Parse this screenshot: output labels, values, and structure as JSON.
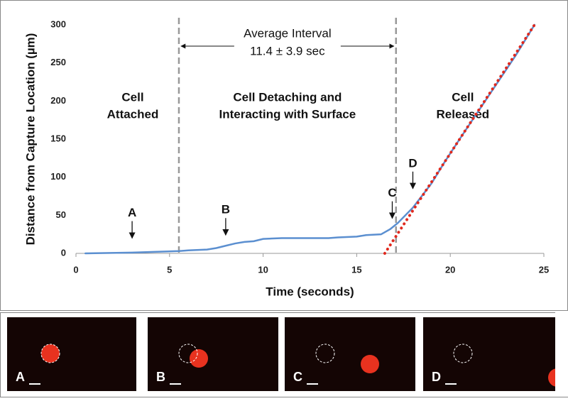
{
  "chart_data": {
    "type": "line",
    "x_label": "Time (seconds)",
    "y_label": "Distance from Capture Location (µm)",
    "xlim": [
      0,
      25
    ],
    "xticks": [
      0,
      5,
      10,
      15,
      20,
      25
    ],
    "ylim": [
      0,
      300
    ],
    "yticks": [
      0,
      50,
      100,
      150,
      200,
      250,
      300
    ],
    "series": [
      {
        "color": "#5b8fd0",
        "style": "solid",
        "x": [
          0.5,
          3,
          5.5,
          6,
          7,
          7.5,
          8,
          8.5,
          9,
          9.5,
          10,
          11,
          13.5,
          14,
          15,
          15.5,
          16.3,
          16.8,
          17.2,
          18,
          19,
          19.7,
          20.5,
          22,
          23.5,
          24.5
        ],
        "values": [
          0,
          1,
          3,
          4,
          5,
          7,
          10,
          13,
          15,
          16,
          19,
          20,
          20,
          21,
          22,
          24,
          25,
          32,
          40,
          60,
          92,
          120,
          150,
          205,
          260,
          300
        ]
      },
      {
        "color": "#e0291e",
        "style": "dotted",
        "x": [
          16.5,
          24.5
        ],
        "values": [
          0,
          300
        ]
      }
    ],
    "vlines": [
      5.5,
      17.1
    ],
    "interval_label": [
      "Average Interval",
      "11.4 ± 3.9 sec"
    ],
    "region_labels": [
      [
        "Cell",
        "Attached"
      ],
      [
        "Cell Detaching and",
        "Interacting with Surface"
      ],
      [
        "Cell",
        "Released"
      ]
    ],
    "point_labels": [
      {
        "label": "A",
        "x": 3,
        "y": 20
      },
      {
        "label": "B",
        "x": 8,
        "y": 24
      },
      {
        "label": "C",
        "x": 16.9,
        "y": 46
      },
      {
        "label": "D",
        "x": 18,
        "y": 85
      }
    ]
  },
  "panels": {
    "labels": [
      "A",
      "B",
      "C",
      "D"
    ]
  }
}
